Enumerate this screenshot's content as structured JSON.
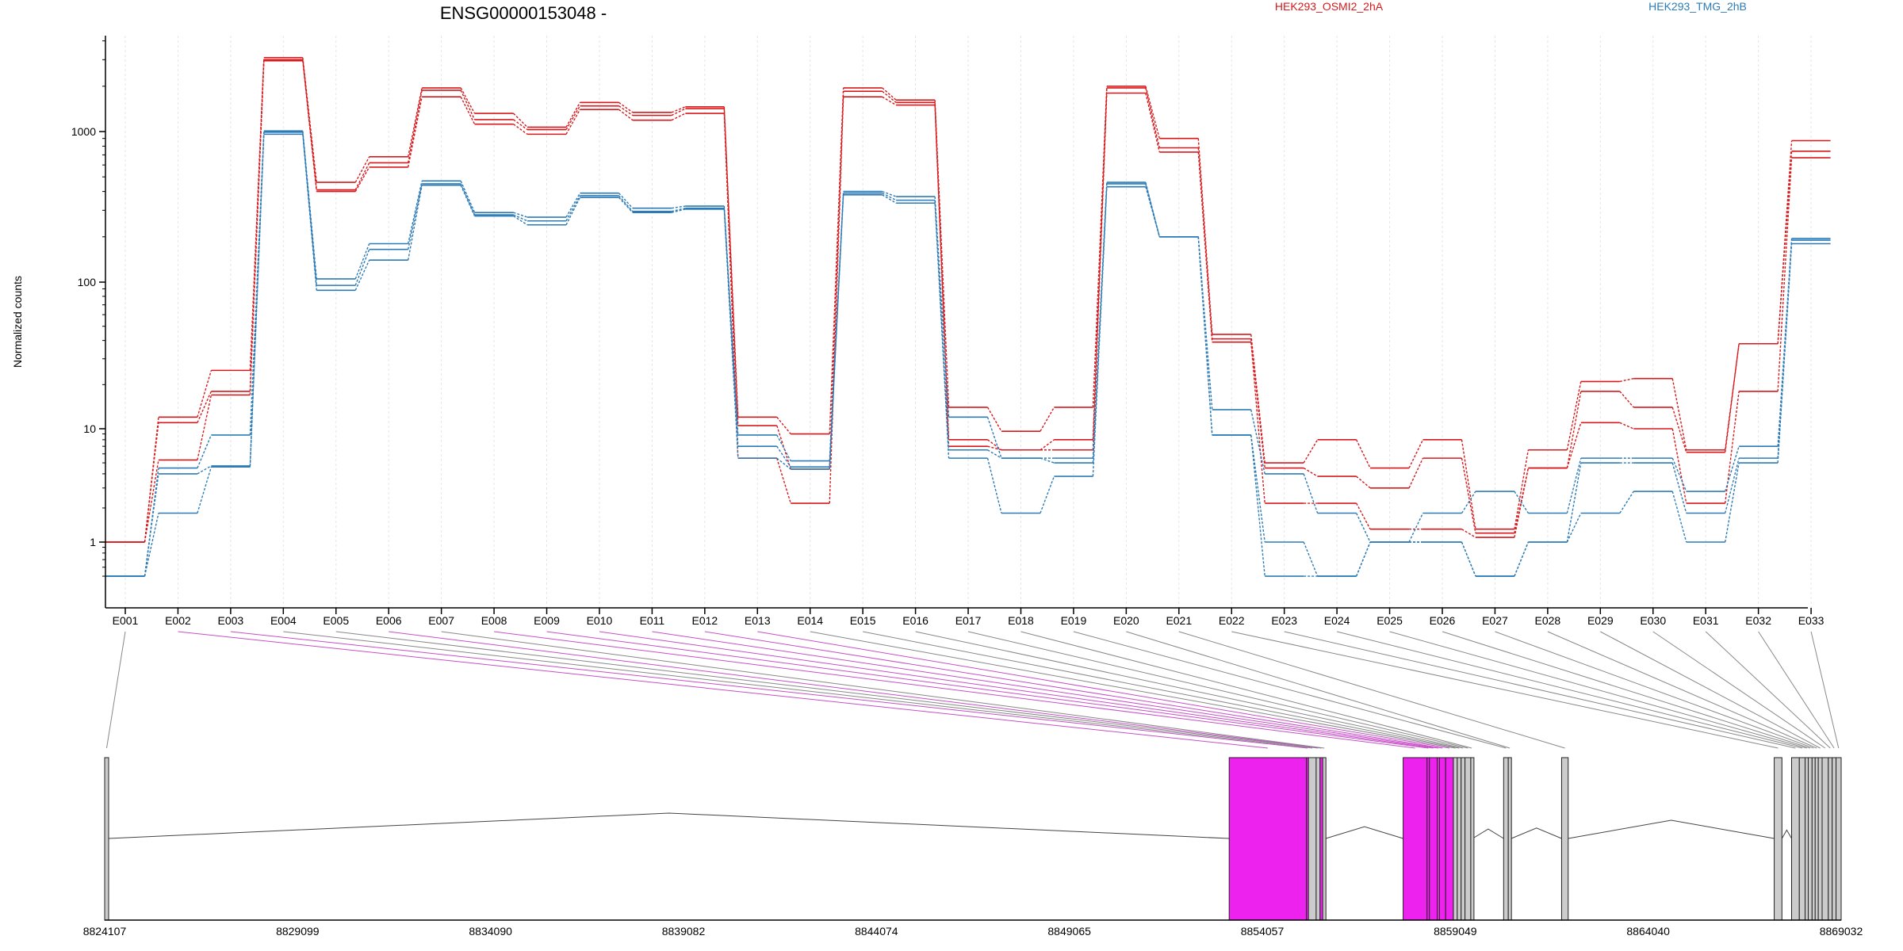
{
  "chart_data": {
    "type": "line",
    "title": "ENSG00000153048 -",
    "ylabel": "Normalized counts",
    "yscale": "log",
    "ylim": [
      0.5,
      4000
    ],
    "yticks": [
      1,
      10,
      100,
      1000
    ],
    "ytick_labels": [
      "1",
      "10",
      "100",
      "1000"
    ],
    "categories": [
      "E001",
      "E002",
      "E003",
      "E004",
      "E005",
      "E006",
      "E007",
      "E008",
      "E009",
      "E010",
      "E011",
      "E012",
      "E013",
      "E014",
      "E015",
      "E016",
      "E017",
      "E018",
      "E019",
      "E020",
      "E021",
      "E022",
      "E023",
      "E024",
      "E025",
      "E026",
      "E027",
      "E028",
      "E029",
      "E030",
      "E031",
      "E032",
      "E033"
    ],
    "legend": [
      {
        "name": "HEK293_OSMI2_2hA",
        "color": "#d7191c"
      },
      {
        "name": "HEK293_TMG_2hB",
        "color": "#2c7bb6"
      }
    ],
    "series": [
      {
        "name": "HEK293_OSMI2_2hA",
        "color": "#d7191c",
        "values": [
          1,
          12,
          25,
          3100,
          460,
          680,
          1950,
          1320,
          1070,
          1560,
          1340,
          1460,
          12,
          9,
          1950,
          1620,
          14,
          9.5,
          14,
          2000,
          900,
          44,
          5,
          8,
          4.5,
          8,
          1.3,
          6.5,
          21,
          22,
          6.5,
          38,
          870
        ]
      },
      {
        "name": "HEK293_OSMI2_2hA",
        "color": "#d7191c",
        "values": [
          1,
          11,
          18,
          3000,
          410,
          620,
          1880,
          1200,
          1030,
          1480,
          1280,
          1420,
          10.5,
          4.4,
          1850,
          1560,
          8,
          6.5,
          8,
          1950,
          780,
          41,
          4.5,
          3.8,
          3,
          5.5,
          1.2,
          4.5,
          18,
          14,
          6.2,
          38,
          740
        ]
      },
      {
        "name": "HEK293_OSMI2_2hA",
        "color": "#d7191c",
        "values": [
          1,
          5.3,
          17,
          2950,
          400,
          580,
          1700,
          1120,
          960,
          1400,
          1190,
          1320,
          5.5,
          2.2,
          1700,
          1500,
          7,
          6.5,
          6.5,
          1800,
          730,
          39,
          2.2,
          2.2,
          1.3,
          1.3,
          1.1,
          4.5,
          11,
          10,
          2.2,
          18,
          670
        ]
      },
      {
        "name": "HEK293_TMG_2hB",
        "color": "#2c7bb6",
        "values": [
          0.5,
          4.5,
          8.8,
          1010,
          105,
          180,
          470,
          290,
          270,
          390,
          310,
          320,
          8.8,
          5.2,
          400,
          370,
          12,
          5.5,
          5.5,
          460,
          200,
          13.5,
          4,
          1.8,
          1,
          1.8,
          2.8,
          1.8,
          5.5,
          5.5,
          2.8,
          7,
          195
        ]
      },
      {
        "name": "HEK293_TMG_2hB",
        "color": "#2c7bb6",
        "values": [
          0.5,
          4,
          4.7,
          990,
          95,
          165,
          450,
          280,
          255,
          375,
          295,
          310,
          7,
          4.6,
          390,
          350,
          6.5,
          5.5,
          5,
          450,
          200,
          8.8,
          1,
          0.5,
          1,
          1,
          0.5,
          1,
          5,
          5,
          1.8,
          5.5,
          190
        ]
      },
      {
        "name": "HEK293_TMG_2hB",
        "color": "#2c7bb6",
        "values": [
          0.5,
          1.8,
          4.6,
          960,
          88,
          140,
          440,
          275,
          240,
          365,
          290,
          305,
          5.5,
          4.4,
          380,
          335,
          5.5,
          1.8,
          3.8,
          430,
          200,
          8.8,
          0.5,
          0.5,
          1,
          1,
          0.5,
          1,
          1.8,
          2.8,
          1,
          5,
          180
        ]
      }
    ],
    "coord_labels": [
      "8824107",
      "8829099",
      "8834090",
      "8839082",
      "8844074",
      "8849065",
      "8854057",
      "8859049",
      "8864040",
      "8869032"
    ],
    "coord_ticks": [
      8824107,
      8829099,
      8834090,
      8839082,
      8844074,
      8849065,
      8854057,
      8859049,
      8864040,
      8869032
    ],
    "coord_range": [
      8824107,
      8869032
    ],
    "exons": [
      {
        "id": "E001",
        "start": 8824107,
        "end": 8824210,
        "color": "#cccccc"
      },
      {
        "id": "E002",
        "start": 8853200,
        "end": 8855200,
        "color": "#ee22ee"
      },
      {
        "id": "E003",
        "start": 8855200,
        "end": 8855250,
        "color": "#ee22ee"
      },
      {
        "id": "E004",
        "start": 8855250,
        "end": 8855450,
        "color": "#cccccc"
      },
      {
        "id": "E005",
        "start": 8855450,
        "end": 8855550,
        "color": "#cccccc"
      },
      {
        "id": "E006",
        "start": 8855550,
        "end": 8855620,
        "color": "#ee22ee"
      },
      {
        "id": "E007",
        "start": 8855620,
        "end": 8855700,
        "color": "#cccccc"
      },
      {
        "id": "E008",
        "start": 8857700,
        "end": 8858320,
        "color": "#ee22ee"
      },
      {
        "id": "E009",
        "start": 8858320,
        "end": 8858380,
        "color": "#ee22ee"
      },
      {
        "id": "E010",
        "start": 8858380,
        "end": 8858580,
        "color": "#ee22ee"
      },
      {
        "id": "E011",
        "start": 8858580,
        "end": 8858640,
        "color": "#ee22ee"
      },
      {
        "id": "E012",
        "start": 8858640,
        "end": 8858800,
        "color": "#ee22ee"
      },
      {
        "id": "E013",
        "start": 8858800,
        "end": 8859000,
        "color": "#ee22ee"
      },
      {
        "id": "E014",
        "start": 8859000,
        "end": 8859100,
        "color": "#cccccc"
      },
      {
        "id": "E015",
        "start": 8859100,
        "end": 8859200,
        "color": "#cccccc"
      },
      {
        "id": "E016",
        "start": 8859200,
        "end": 8859300,
        "color": "#cccccc"
      },
      {
        "id": "E017",
        "start": 8859300,
        "end": 8859450,
        "color": "#cccccc"
      },
      {
        "id": "E018",
        "start": 8859450,
        "end": 8859500,
        "color": "#cccccc"
      },
      {
        "id": "E019",
        "start": 8860300,
        "end": 8860420,
        "color": "#cccccc"
      },
      {
        "id": "E020",
        "start": 8860420,
        "end": 8860500,
        "color": "#cccccc"
      },
      {
        "id": "E021",
        "start": 8861800,
        "end": 8861970,
        "color": "#cccccc"
      },
      {
        "id": "E022",
        "start": 8867300,
        "end": 8867500,
        "color": "#cccccc"
      },
      {
        "id": "E023",
        "start": 8867750,
        "end": 8867950,
        "color": "#cccccc"
      },
      {
        "id": "E024",
        "start": 8867950,
        "end": 8868100,
        "color": "#cccccc"
      },
      {
        "id": "E025",
        "start": 8868100,
        "end": 8868180,
        "color": "#cccccc"
      },
      {
        "id": "E026",
        "start": 8868180,
        "end": 8868280,
        "color": "#cccccc"
      },
      {
        "id": "E027",
        "start": 8868280,
        "end": 8868360,
        "color": "#cccccc"
      },
      {
        "id": "E028",
        "start": 8868360,
        "end": 8868440,
        "color": "#cccccc"
      },
      {
        "id": "E029",
        "start": 8868440,
        "end": 8868540,
        "color": "#cccccc"
      },
      {
        "id": "E030",
        "start": 8868540,
        "end": 8868700,
        "color": "#cccccc"
      },
      {
        "id": "E031",
        "start": 8868700,
        "end": 8868800,
        "color": "#cccccc"
      },
      {
        "id": "E032",
        "start": 8868800,
        "end": 8868900,
        "color": "#cccccc"
      },
      {
        "id": "E033",
        "start": 8868900,
        "end": 8869032,
        "color": "#cccccc"
      }
    ],
    "grid": false,
    "legend_position": "top"
  }
}
